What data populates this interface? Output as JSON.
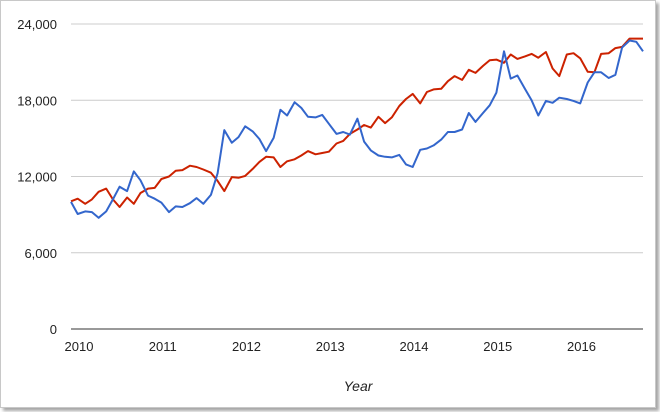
{
  "chart_data": {
    "type": "line",
    "title": "",
    "xlabel": "Year",
    "ylabel": "",
    "ylim": [
      0,
      24000
    ],
    "xlim": [
      2010.0,
      2016.83
    ],
    "y_ticks": [
      0,
      6000,
      12000,
      18000,
      24000
    ],
    "y_tick_labels": [
      "0",
      "6,000",
      "12,000",
      "18,000",
      "24,000"
    ],
    "x_ticks": [
      2010,
      2011,
      2012,
      2013,
      2014,
      2015,
      2016
    ],
    "x_tick_labels": [
      "2010",
      "2011",
      "2012",
      "2013",
      "2014",
      "2015",
      "2016"
    ],
    "grid": true,
    "legend": "none",
    "series": [
      {
        "color": "#cc2200",
        "points": [
          [
            2010.0,
            10050
          ],
          [
            2010.08,
            10250
          ],
          [
            2010.17,
            9850
          ],
          [
            2010.25,
            10200
          ],
          [
            2010.33,
            10800
          ],
          [
            2010.42,
            11050
          ],
          [
            2010.5,
            10200
          ],
          [
            2010.58,
            9600
          ],
          [
            2010.67,
            10350
          ],
          [
            2010.75,
            9850
          ],
          [
            2010.83,
            10700
          ],
          [
            2010.92,
            11050
          ],
          [
            2011.0,
            11100
          ],
          [
            2011.08,
            11800
          ],
          [
            2011.17,
            12000
          ],
          [
            2011.25,
            12450
          ],
          [
            2011.33,
            12500
          ],
          [
            2011.42,
            12850
          ],
          [
            2011.5,
            12750
          ],
          [
            2011.58,
            12550
          ],
          [
            2011.67,
            12300
          ],
          [
            2011.75,
            11650
          ],
          [
            2011.83,
            10850
          ],
          [
            2011.92,
            11950
          ],
          [
            2012.0,
            11900
          ],
          [
            2012.08,
            12050
          ],
          [
            2012.17,
            12600
          ],
          [
            2012.25,
            13150
          ],
          [
            2012.33,
            13550
          ],
          [
            2012.42,
            13500
          ],
          [
            2012.5,
            12750
          ],
          [
            2012.58,
            13200
          ],
          [
            2012.67,
            13350
          ],
          [
            2012.75,
            13650
          ],
          [
            2012.83,
            14000
          ],
          [
            2012.92,
            13750
          ],
          [
            2013.0,
            13850
          ],
          [
            2013.08,
            13950
          ],
          [
            2013.17,
            14600
          ],
          [
            2013.25,
            14800
          ],
          [
            2013.33,
            15350
          ],
          [
            2013.42,
            15700
          ],
          [
            2013.5,
            16050
          ],
          [
            2013.58,
            15850
          ],
          [
            2013.67,
            16700
          ],
          [
            2013.75,
            16200
          ],
          [
            2013.83,
            16650
          ],
          [
            2013.92,
            17550
          ],
          [
            2014.0,
            18100
          ],
          [
            2014.08,
            18500
          ],
          [
            2014.17,
            17750
          ],
          [
            2014.25,
            18650
          ],
          [
            2014.33,
            18850
          ],
          [
            2014.42,
            18900
          ],
          [
            2014.5,
            19500
          ],
          [
            2014.58,
            19900
          ],
          [
            2014.67,
            19600
          ],
          [
            2014.75,
            20400
          ],
          [
            2014.83,
            20150
          ],
          [
            2014.92,
            20700
          ],
          [
            2015.0,
            21150
          ],
          [
            2015.08,
            21200
          ],
          [
            2015.17,
            20950
          ],
          [
            2015.25,
            21600
          ],
          [
            2015.33,
            21250
          ],
          [
            2015.42,
            21450
          ],
          [
            2015.5,
            21650
          ],
          [
            2015.58,
            21350
          ],
          [
            2015.67,
            21800
          ],
          [
            2015.75,
            20500
          ],
          [
            2015.83,
            19900
          ],
          [
            2015.92,
            21600
          ],
          [
            2016.0,
            21700
          ],
          [
            2016.08,
            21300
          ],
          [
            2016.17,
            20250
          ],
          [
            2016.25,
            20200
          ],
          [
            2016.33,
            21650
          ],
          [
            2016.42,
            21700
          ],
          [
            2016.5,
            22100
          ],
          [
            2016.58,
            22200
          ],
          [
            2016.67,
            22850
          ],
          [
            2016.75,
            22850
          ],
          [
            2016.83,
            22850
          ]
        ]
      },
      {
        "color": "#3366cc",
        "points": [
          [
            2010.0,
            10000
          ],
          [
            2010.08,
            9050
          ],
          [
            2010.17,
            9250
          ],
          [
            2010.25,
            9200
          ],
          [
            2010.33,
            8750
          ],
          [
            2010.42,
            9250
          ],
          [
            2010.5,
            10200
          ],
          [
            2010.58,
            11200
          ],
          [
            2010.67,
            10850
          ],
          [
            2010.75,
            12400
          ],
          [
            2010.83,
            11700
          ],
          [
            2010.92,
            10500
          ],
          [
            2011.0,
            10250
          ],
          [
            2011.08,
            9950
          ],
          [
            2011.17,
            9200
          ],
          [
            2011.25,
            9650
          ],
          [
            2011.33,
            9600
          ],
          [
            2011.42,
            9900
          ],
          [
            2011.5,
            10300
          ],
          [
            2011.58,
            9850
          ],
          [
            2011.67,
            10550
          ],
          [
            2011.75,
            12250
          ],
          [
            2011.83,
            15650
          ],
          [
            2011.92,
            14650
          ],
          [
            2012.0,
            15100
          ],
          [
            2012.08,
            15950
          ],
          [
            2012.17,
            15550
          ],
          [
            2012.25,
            14950
          ],
          [
            2012.33,
            14000
          ],
          [
            2012.42,
            15050
          ],
          [
            2012.5,
            17250
          ],
          [
            2012.58,
            16800
          ],
          [
            2012.67,
            17850
          ],
          [
            2012.75,
            17400
          ],
          [
            2012.83,
            16700
          ],
          [
            2012.92,
            16650
          ],
          [
            2013.0,
            16850
          ],
          [
            2013.08,
            16150
          ],
          [
            2013.17,
            15350
          ],
          [
            2013.25,
            15500
          ],
          [
            2013.33,
            15300
          ],
          [
            2013.42,
            16550
          ],
          [
            2013.5,
            14750
          ],
          [
            2013.58,
            14050
          ],
          [
            2013.67,
            13650
          ],
          [
            2013.75,
            13550
          ],
          [
            2013.83,
            13500
          ],
          [
            2013.92,
            13700
          ],
          [
            2014.0,
            12950
          ],
          [
            2014.08,
            12750
          ],
          [
            2014.17,
            14100
          ],
          [
            2014.25,
            14200
          ],
          [
            2014.33,
            14450
          ],
          [
            2014.42,
            14900
          ],
          [
            2014.5,
            15500
          ],
          [
            2014.58,
            15500
          ],
          [
            2014.67,
            15700
          ],
          [
            2014.75,
            17000
          ],
          [
            2014.83,
            16300
          ],
          [
            2014.92,
            17000
          ],
          [
            2015.0,
            17600
          ],
          [
            2015.08,
            18600
          ],
          [
            2015.17,
            21850
          ],
          [
            2015.25,
            19700
          ],
          [
            2015.33,
            19950
          ],
          [
            2015.42,
            18900
          ],
          [
            2015.5,
            18000
          ],
          [
            2015.58,
            16800
          ],
          [
            2015.67,
            17950
          ],
          [
            2015.75,
            17800
          ],
          [
            2015.83,
            18200
          ],
          [
            2015.92,
            18100
          ],
          [
            2016.0,
            17950
          ],
          [
            2016.08,
            17750
          ],
          [
            2016.17,
            19400
          ],
          [
            2016.25,
            20200
          ],
          [
            2016.33,
            20200
          ],
          [
            2016.42,
            19750
          ],
          [
            2016.5,
            20000
          ],
          [
            2016.58,
            22150
          ],
          [
            2016.67,
            22700
          ],
          [
            2016.75,
            22600
          ],
          [
            2016.83,
            21850
          ]
        ]
      }
    ]
  }
}
